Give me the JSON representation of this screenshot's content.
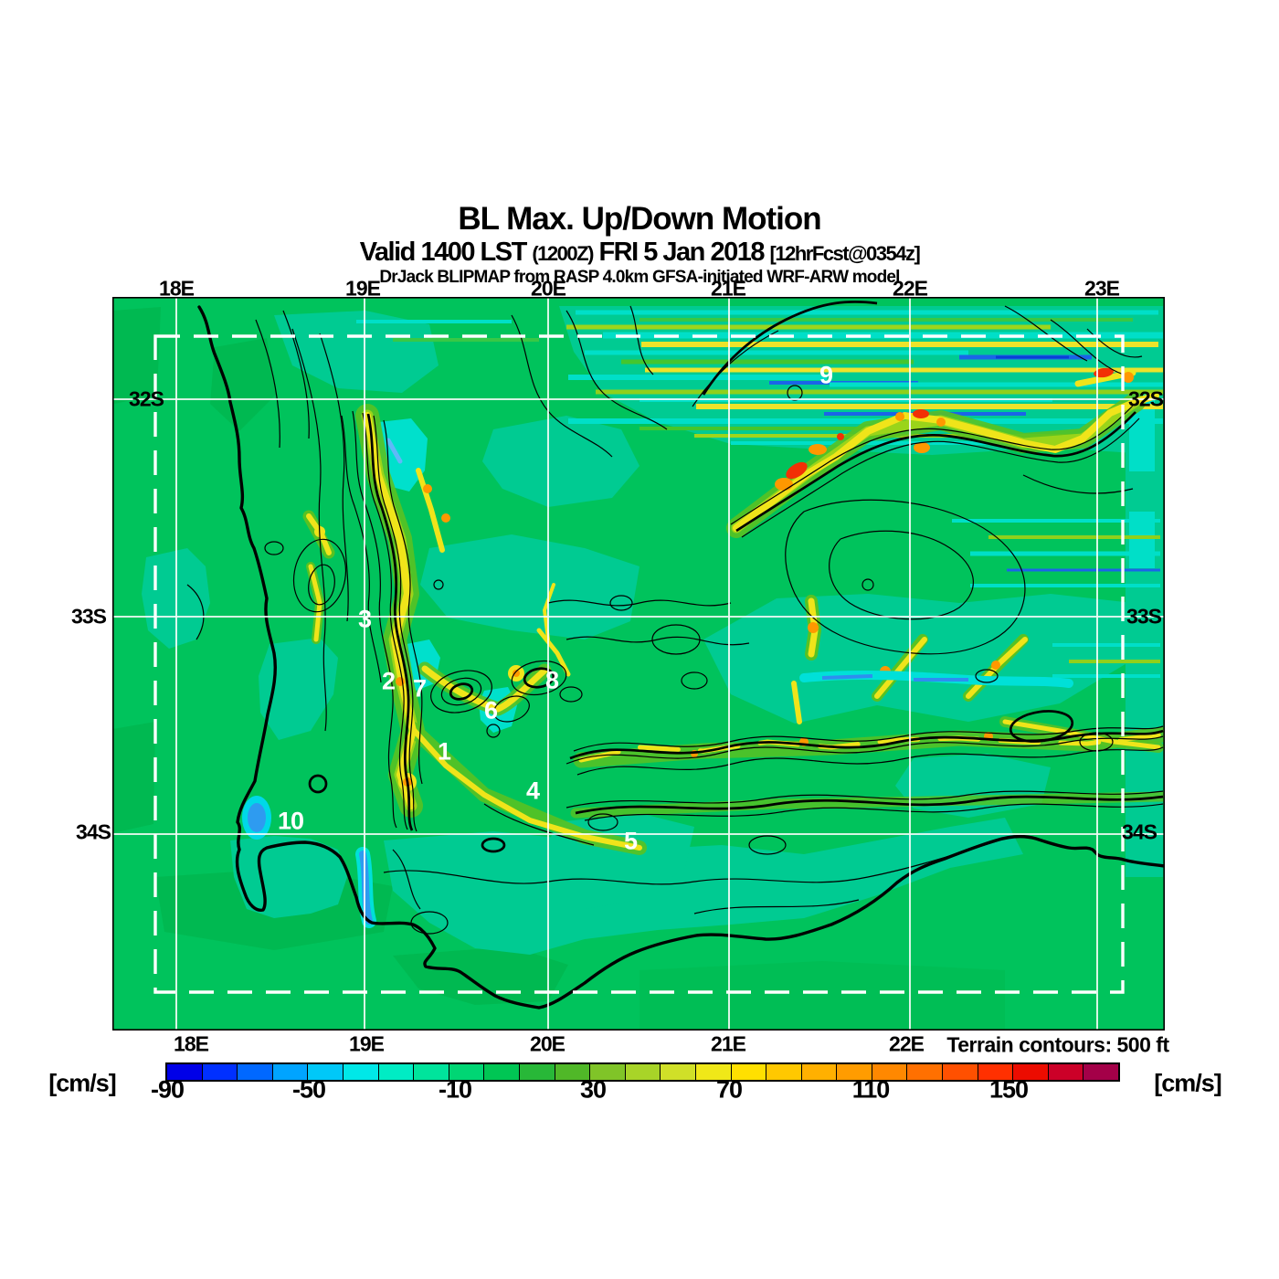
{
  "title": {
    "line1": "BL Max. Up/Down Motion",
    "line2_valid": "Valid 1400 LST",
    "line2_zulu": "(1200Z)",
    "line2_date": "FRI 5 Jan 2018",
    "line2_fcst": "[12hrFcst@0354z]",
    "line3": "DrJack BLIPMAP from RASP 4.0km GFSA-initiated WRF-ARW model"
  },
  "axes": {
    "top": [
      "18E",
      "19E",
      "20E",
      "21E",
      "22E",
      "23E"
    ],
    "bottom": [
      "18E",
      "19E",
      "20E",
      "21E",
      "22E"
    ],
    "left": [
      "32S",
      "33S",
      "34S"
    ],
    "right": [
      "32S",
      "33S",
      "34S"
    ]
  },
  "map": {
    "terrain_note": "Terrain contours: 500 ft",
    "site_labels": [
      "1",
      "2",
      "3",
      "4",
      "5",
      "6",
      "7",
      "8",
      "9",
      "10"
    ],
    "colors": {
      "base_green": "#00C35C",
      "teal": "#00CB92",
      "cyan": "#00E0CC",
      "ridge_yellow": "#F0E41A",
      "ridge_orange": "#FF9800",
      "ridge_red": "#F23005",
      "wave_blue": "#1B64E8",
      "grid_white": "#FFFFFF",
      "contour_black": "#000000"
    }
  },
  "colorbar": {
    "unit_left": "[cm/s]",
    "unit_right": "[cm/s]",
    "tick_labels": [
      "-90",
      "-50",
      "-10",
      "30",
      "70",
      "110",
      "150"
    ],
    "segments": [
      "#0000E8",
      "#0030FF",
      "#0068FF",
      "#00A4FF",
      "#00C8F8",
      "#00E8E8",
      "#00ECC4",
      "#00E49C",
      "#00D674",
      "#00C654",
      "#28B838",
      "#50B828",
      "#80C428",
      "#A8D428",
      "#D0E028",
      "#F0E818",
      "#FFE000",
      "#FFC800",
      "#FFB000",
      "#FF9C00",
      "#FF8800",
      "#FF7000",
      "#FF5000",
      "#FF3000",
      "#EC0C00",
      "#CC0028",
      "#A40048"
    ]
  },
  "chart_data": {
    "type": "heatmap",
    "title": "BL Max. Up/Down Motion",
    "units": "cm/s",
    "colorbar_tick_values": [
      -90,
      -50,
      -10,
      30,
      70,
      110,
      150
    ],
    "x_ticks": [
      "18E",
      "19E",
      "20E",
      "21E",
      "22E",
      "23E"
    ],
    "y_ticks": [
      "32S",
      "33S",
      "34S"
    ],
    "annotation": "Terrain contours: 500 ft",
    "site_markers": [
      1,
      2,
      3,
      4,
      5,
      6,
      7,
      8,
      9,
      10
    ]
  }
}
